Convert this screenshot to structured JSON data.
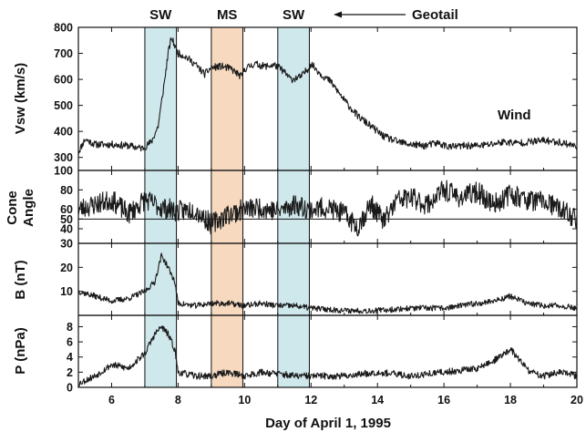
{
  "chart_data": {
    "type": "line",
    "xlabel": "Day of April 1, 1995",
    "xlim": [
      5,
      20
    ],
    "xticks": [
      6,
      8,
      10,
      12,
      14,
      16,
      18,
      20
    ],
    "regions": [
      {
        "label": "SW",
        "x0": 7.0,
        "x1": 7.95,
        "color": "#cfe8ec"
      },
      {
        "label": "MS",
        "x0": 9.0,
        "x1": 9.95,
        "color": "#f6d9bf"
      },
      {
        "label": "SW",
        "x0": 11.0,
        "x1": 11.95,
        "color": "#cfe8ec"
      }
    ],
    "annotations": {
      "geotail": "Geotail",
      "wind": "Wind"
    },
    "panels": [
      {
        "ylabel": [
          "Vsw (km/s)"
        ],
        "ylim": [
          250,
          800
        ],
        "yticks": [
          300,
          400,
          500,
          600,
          700,
          800
        ],
        "ref_line": null,
        "x": [
          5.0,
          5.2,
          5.5,
          6.0,
          6.5,
          6.9,
          7.0,
          7.2,
          7.4,
          7.6,
          7.7,
          7.8,
          7.9,
          8.0,
          8.2,
          8.5,
          8.8,
          9.0,
          9.3,
          9.6,
          9.9,
          10.0,
          10.3,
          10.6,
          10.9,
          11.1,
          11.4,
          11.7,
          11.9,
          12.0,
          12.3,
          12.6,
          13.0,
          13.4,
          13.8,
          14.2,
          14.6,
          15.0,
          15.4,
          15.8,
          16.2,
          16.6,
          17.0,
          17.4,
          17.8,
          18.2,
          18.6,
          19.0,
          19.4,
          19.8,
          20.0
        ],
        "y": [
          320,
          370,
          350,
          350,
          345,
          335,
          340,
          360,
          420,
          600,
          700,
          760,
          730,
          700,
          690,
          660,
          620,
          645,
          650,
          640,
          610,
          640,
          660,
          650,
          655,
          640,
          600,
          610,
          640,
          660,
          620,
          590,
          520,
          460,
          420,
          380,
          360,
          350,
          345,
          355,
          340,
          345,
          345,
          350,
          360,
          355,
          360,
          365,
          360,
          350,
          340
        ],
        "noise": 14,
        "seed": 11
      },
      {
        "ylabel": [
          "Cone",
          "Angle"
        ],
        "ylim": [
          25,
          100
        ],
        "yticks": [
          40,
          50,
          60,
          80,
          100
        ],
        "ref_line": 50,
        "x": [
          5.0,
          5.5,
          6.0,
          6.5,
          7.0,
          7.5,
          8.0,
          8.5,
          9.0,
          9.5,
          10.0,
          10.5,
          11.0,
          11.5,
          12.0,
          12.5,
          13.0,
          13.4,
          13.8,
          14.2,
          14.6,
          15.0,
          15.5,
          16.0,
          16.5,
          17.0,
          17.5,
          18.0,
          18.5,
          19.0,
          19.5,
          20.0
        ],
        "y": [
          60,
          65,
          70,
          55,
          70,
          62,
          58,
          60,
          45,
          55,
          60,
          62,
          58,
          65,
          60,
          62,
          55,
          42,
          65,
          48,
          70,
          72,
          65,
          80,
          72,
          78,
          65,
          76,
          70,
          68,
          60,
          50
        ],
        "noise": 11,
        "seed": 23
      },
      {
        "ylabel": [
          "B (nT)"
        ],
        "ylim": [
          0,
          30
        ],
        "yticks": [
          10,
          20,
          30
        ],
        "ref_line": null,
        "x": [
          5.0,
          5.5,
          6.0,
          6.5,
          7.0,
          7.3,
          7.5,
          7.7,
          7.9,
          8.0,
          8.5,
          9.0,
          9.5,
          10.0,
          10.5,
          11.0,
          11.5,
          12.0,
          13.0,
          14.0,
          15.0,
          16.0,
          17.0,
          17.5,
          18.0,
          18.5,
          19.0,
          19.5,
          20.0
        ],
        "y": [
          10,
          8,
          6,
          7,
          10,
          14,
          25,
          20,
          14,
          5,
          4,
          5,
          5,
          4,
          5,
          4,
          4,
          3,
          2,
          2,
          3,
          3,
          5,
          6,
          8,
          5,
          4,
          4,
          3
        ],
        "noise": 1.2,
        "seed": 37
      },
      {
        "ylabel": [
          "P (nPa)"
        ],
        "ylim": [
          0,
          9.5
        ],
        "yticks": [
          0,
          2,
          4,
          6,
          8
        ],
        "ref_line": null,
        "x": [
          5.0,
          5.5,
          6.0,
          6.5,
          7.0,
          7.3,
          7.5,
          7.7,
          7.9,
          8.0,
          8.5,
          9.0,
          9.5,
          10.0,
          10.5,
          11.0,
          11.5,
          12.0,
          13.0,
          14.0,
          15.0,
          16.0,
          17.0,
          17.5,
          18.0,
          18.3,
          18.6,
          19.0,
          19.5,
          20.0
        ],
        "y": [
          0.5,
          1.5,
          3,
          2.5,
          4.5,
          7,
          8,
          7,
          5,
          2,
          1.5,
          1.5,
          2,
          1.5,
          2,
          1.8,
          1.5,
          1.5,
          1.5,
          2,
          1.5,
          2,
          2.5,
          3.5,
          5,
          3.5,
          2,
          1.5,
          2,
          1.5
        ],
        "noise": 0.45,
        "seed": 53
      }
    ]
  }
}
